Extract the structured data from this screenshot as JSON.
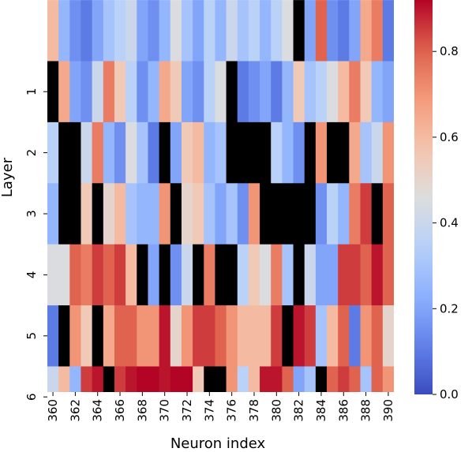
{
  "chart_data": {
    "type": "heatmap",
    "xlabel": "Neuron index",
    "ylabel": "Layer",
    "x_values": [
      360,
      361,
      362,
      363,
      364,
      365,
      366,
      367,
      368,
      369,
      370,
      371,
      372,
      373,
      374,
      375,
      376,
      377,
      378,
      379,
      380,
      381,
      382,
      383,
      384,
      385,
      386,
      387,
      388,
      389,
      390
    ],
    "x_tick_labels": [
      "360",
      "362",
      "364",
      "366",
      "368",
      "370",
      "372",
      "374",
      "376",
      "378",
      "380",
      "382",
      "384",
      "386",
      "388",
      "390"
    ],
    "y_tick_labels": [
      "1",
      "2",
      "3",
      "4",
      "5",
      "6"
    ],
    "layers_shown": [
      "0 (partially visible)",
      "1",
      "2",
      "3",
      "4",
      "5",
      "6"
    ],
    "colormap": "coolwarm",
    "color_range": [
      0.0,
      0.92
    ],
    "missing_value_color": "#000000",
    "colorbar_ticks": [
      "0.0",
      "0.2",
      "0.4",
      "0.6",
      "0.8"
    ],
    "values": [
      [
        0.6,
        0.25,
        0.15,
        0.1,
        0.2,
        0.3,
        0.35,
        0.4,
        0.2,
        0.15,
        0.25,
        0.45,
        0.3,
        0.2,
        0.35,
        0.25,
        0.4,
        0.3,
        0.35,
        0.25,
        0.35,
        0.45,
        null,
        0.2,
        0.8,
        0.15,
        0.1,
        0.2,
        0.65,
        0.75,
        0.1
      ],
      [
        null,
        0.65,
        0.2,
        0.15,
        0.4,
        0.75,
        0.55,
        0.35,
        0.15,
        0.25,
        0.65,
        0.55,
        0.2,
        0.15,
        0.35,
        0.45,
        null,
        0.1,
        0.15,
        0.2,
        0.1,
        0.25,
        0.55,
        0.3,
        0.35,
        0.45,
        0.6,
        0.75,
        0.55,
        0.25,
        0.2
      ],
      [
        0.35,
        null,
        null,
        0.4,
        0.75,
        0.25,
        0.15,
        0.45,
        0.3,
        0.1,
        null,
        0.2,
        0.55,
        0.6,
        0.25,
        0.3,
        null,
        null,
        null,
        null,
        0.35,
        0.25,
        0.15,
        null,
        0.7,
        null,
        null,
        0.65,
        0.3,
        0.4,
        0.7
      ],
      [
        0.25,
        null,
        null,
        0.55,
        null,
        0.5,
        0.6,
        0.3,
        0.25,
        0.25,
        0.7,
        null,
        0.5,
        0.55,
        0.3,
        0.2,
        0.3,
        0.15,
        0.7,
        null,
        null,
        null,
        null,
        null,
        0.15,
        0.35,
        0.25,
        0.75,
        0.85,
        null,
        0.8
      ],
      [
        0.45,
        0.45,
        0.8,
        0.75,
        0.85,
        0.8,
        0.85,
        0.6,
        null,
        0.2,
        null,
        0.15,
        0.4,
        null,
        0.75,
        null,
        null,
        0.35,
        0.55,
        0.45,
        0.75,
        0.3,
        null,
        0.4,
        0.2,
        0.2,
        0.85,
        0.85,
        0.8,
        0.9,
        0.8
      ],
      [
        0.1,
        null,
        0.7,
        0.55,
        null,
        0.65,
        0.8,
        0.8,
        0.7,
        0.7,
        0.9,
        0.5,
        0.7,
        0.85,
        0.85,
        0.8,
        0.7,
        0.6,
        0.6,
        0.6,
        0.85,
        null,
        0.9,
        0.85,
        0.3,
        0.6,
        0.8,
        0.1,
        0.7,
        0.8,
        0.5
      ],
      [
        0.4,
        0.6,
        0.25,
        0.85,
        0.9,
        null,
        0.85,
        0.9,
        0.92,
        0.92,
        0.9,
        0.92,
        0.92,
        0.55,
        null,
        null,
        0.7,
        0.35,
        0.6,
        0.9,
        0.9,
        0.8,
        0.2,
        0.3,
        null,
        0.8,
        0.85,
        0.8,
        0.3,
        0.8,
        0.7
      ]
    ]
  }
}
